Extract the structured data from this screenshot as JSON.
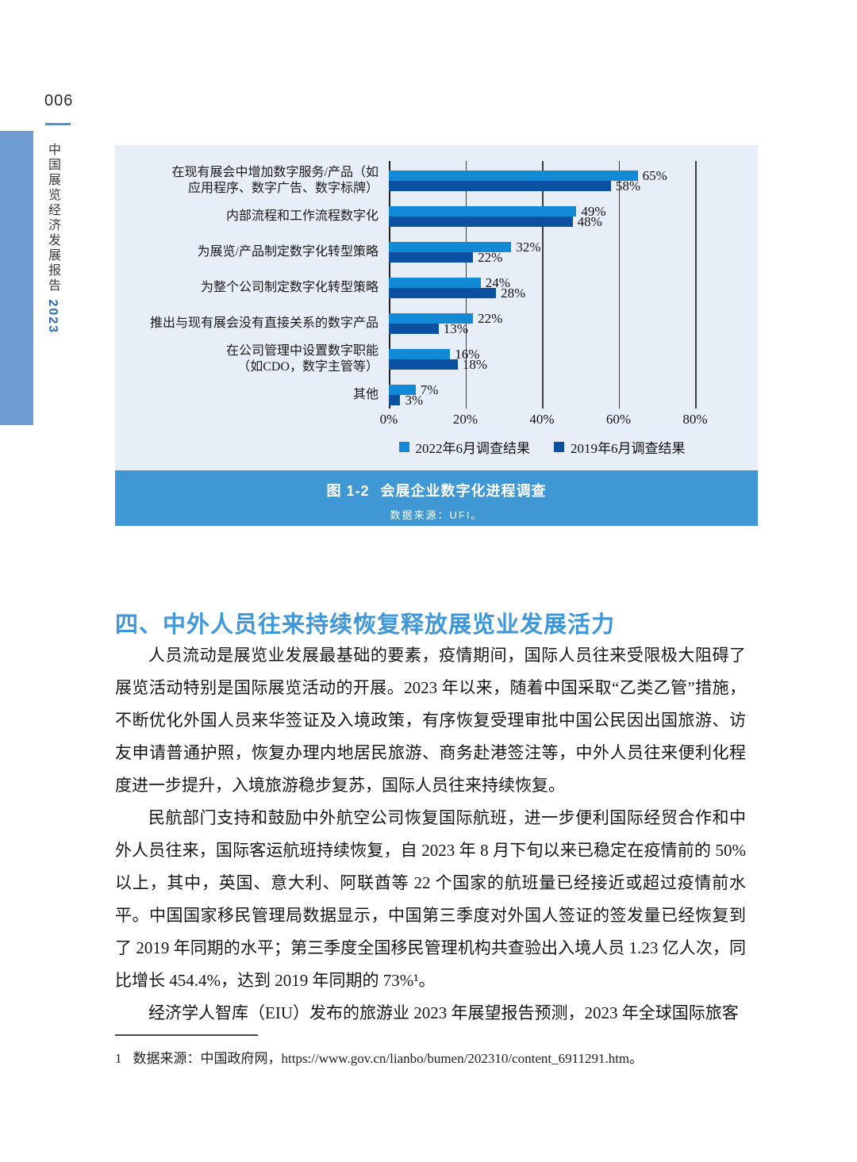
{
  "page": {
    "page_number": "006",
    "sidebar_title": "中国展览经济发展报告",
    "sidebar_year": "2023"
  },
  "figure": {
    "caption_label": "图 1-2",
    "caption_title": "会展企业数字化进程调查",
    "source": "数据来源：UFI。"
  },
  "chart_data": {
    "type": "bar",
    "orientation": "horizontal",
    "categories": [
      "在现有展会中增加数字服务/产品（如\n应用程序、数字广告、数字标牌）",
      "内部流程和工作流程数字化",
      "为展览/产品制定数字化转型策略",
      "为整个公司制定数字化转型策略",
      "推出与现有展会没有直接关系的数字产品",
      "在公司管理中设置数字职能\n（如CDO，数字主管等）",
      "其他"
    ],
    "series": [
      {
        "name": "2022年6月调查结果",
        "color": "#1289d4",
        "values": [
          65,
          49,
          32,
          24,
          22,
          16,
          7
        ]
      },
      {
        "name": "2019年6月调查结果",
        "color": "#0c50a2",
        "values": [
          58,
          48,
          22,
          28,
          13,
          18,
          3
        ]
      }
    ],
    "x_ticks": [
      "0%",
      "20%",
      "40%",
      "60%",
      "80%"
    ],
    "xlim": [
      0,
      80
    ],
    "value_suffix": "%",
    "grid": true,
    "legend_position": "bottom",
    "plot_background": "#e8eef7"
  },
  "section": {
    "heading": "四、中外人员往来持续恢复释放展览业发展活力",
    "paragraphs": [
      "人员流动是展览业发展最基础的要素，疫情期间，国际人员往来受限极大阻碍了展览活动特别是国际展览活动的开展。2023 年以来，随着中国采取“乙类乙管”措施，不断优化外国人员来华签证及入境政策，有序恢复受理审批中国公民因出国旅游、访友申请普通护照，恢复办理内地居民旅游、商务赴港签注等，中外人员往来便利化程度进一步提升，入境旅游稳步复苏，国际人员往来持续恢复。",
      "民航部门支持和鼓励中外航空公司恢复国际航班，进一步便利国际经贸合作和中外人员往来，国际客运航班持续恢复，自 2023 年 8 月下旬以来已稳定在疫情前的 50%以上，其中，英国、意大利、阿联酋等 22 个国家的航班量已经接近或超过疫情前水平。中国国家移民管理局数据显示，中国第三季度对外国人签证的签发量已经恢复到了 2019 年同期的水平；第三季度全国移民管理机构共查验出入境人员 1.23 亿人次，同比增长 454.4%，达到 2019 年同期的 73%¹。",
      "经济学人智库（EIU）发布的旅游业 2023 年展望报告预测，2023 年全球国际旅客"
    ]
  },
  "footnote": {
    "marker": "1",
    "text": "数据来源：中国政府网，https://www.gov.cn/lianbo/bumen/202310/content_6911291.htm。"
  }
}
